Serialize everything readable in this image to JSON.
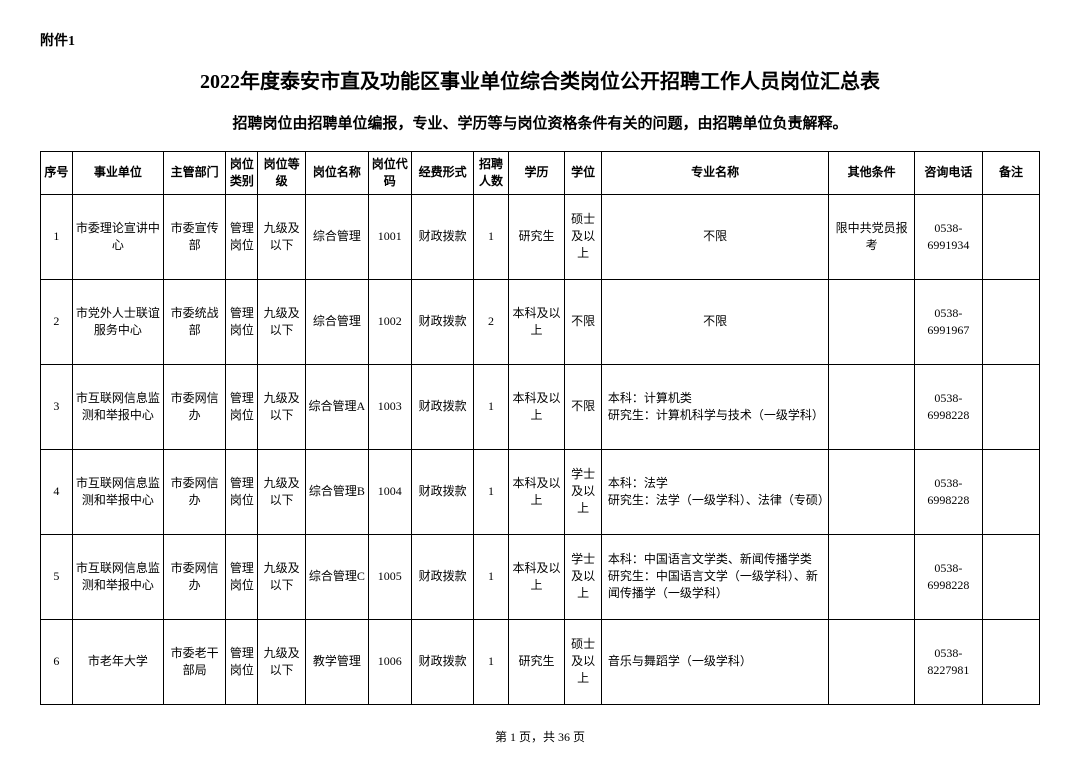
{
  "attachment": "附件1",
  "title": "2022年度泰安市直及功能区事业单位综合类岗位公开招聘工作人员岗位汇总表",
  "subtitle": "招聘岗位由招聘单位编报，专业、学历等与岗位资格条件有关的问题，由招聘单位负责解释。",
  "columns": {
    "seq": "序号",
    "unit": "事业单位",
    "dept": "主管部门",
    "ptype": "岗位类别",
    "plevel": "岗位等级",
    "pname": "岗位名称",
    "pcode": "岗位代码",
    "fund": "经费形式",
    "num": "招聘人数",
    "edu": "学历",
    "deg": "学位",
    "major": "专业名称",
    "other": "其他条件",
    "phone": "咨询电话",
    "note": "备注"
  },
  "rows": [
    {
      "seq": "1",
      "unit": "市委理论宣讲中心",
      "dept": "市委宣传部",
      "ptype": "管理岗位",
      "plevel": "九级及以下",
      "pname": "综合管理",
      "pcode": "1001",
      "fund": "财政拨款",
      "num": "1",
      "edu": "研究生",
      "deg": "硕士及以上",
      "major": "不限",
      "other": "限中共党员报考",
      "phone": "0538-6991934",
      "note": ""
    },
    {
      "seq": "2",
      "unit": "市党外人士联谊服务中心",
      "dept": "市委统战部",
      "ptype": "管理岗位",
      "plevel": "九级及以下",
      "pname": "综合管理",
      "pcode": "1002",
      "fund": "财政拨款",
      "num": "2",
      "edu": "本科及以上",
      "deg": "不限",
      "major": "不限",
      "other": "",
      "phone": "0538-6991967",
      "note": ""
    },
    {
      "seq": "3",
      "unit": "市互联网信息监测和举报中心",
      "dept": "市委网信办",
      "ptype": "管理岗位",
      "plevel": "九级及以下",
      "pname": "综合管理A",
      "pcode": "1003",
      "fund": "财政拨款",
      "num": "1",
      "edu": "本科及以上",
      "deg": "不限",
      "major": "本科：计算机类\n研究生：计算机科学与技术（一级学科）",
      "other": "",
      "phone": "0538-6998228",
      "note": ""
    },
    {
      "seq": "4",
      "unit": "市互联网信息监测和举报中心",
      "dept": "市委网信办",
      "ptype": "管理岗位",
      "plevel": "九级及以下",
      "pname": "综合管理B",
      "pcode": "1004",
      "fund": "财政拨款",
      "num": "1",
      "edu": "本科及以上",
      "deg": "学士及以上",
      "major": "本科：法学\n研究生：法学（一级学科）、法律（专硕）",
      "other": "",
      "phone": "0538-6998228",
      "note": ""
    },
    {
      "seq": "5",
      "unit": "市互联网信息监测和举报中心",
      "dept": "市委网信办",
      "ptype": "管理岗位",
      "plevel": "九级及以下",
      "pname": "综合管理C",
      "pcode": "1005",
      "fund": "财政拨款",
      "num": "1",
      "edu": "本科及以上",
      "deg": "学士及以上",
      "major": "本科：中国语言文学类、新闻传播学类\n研究生：中国语言文学（一级学科）、新闻传播学（一级学科）",
      "other": "",
      "phone": "0538-6998228",
      "note": ""
    },
    {
      "seq": "6",
      "unit": "市老年大学",
      "dept": "市委老干部局",
      "ptype": "管理岗位",
      "plevel": "九级及以下",
      "pname": "教学管理",
      "pcode": "1006",
      "fund": "财政拨款",
      "num": "1",
      "edu": "研究生",
      "deg": "硕士及以上",
      "major": "音乐与舞蹈学（一级学科）",
      "other": "",
      "phone": "0538-8227981",
      "note": ""
    }
  ],
  "pager": "第 1 页，共 36 页"
}
